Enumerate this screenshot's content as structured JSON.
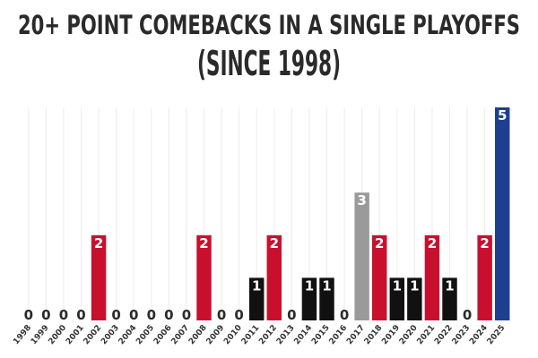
{
  "chart_data": {
    "type": "bar",
    "title": "20+ POINT COMEBACKS IN A SINGLE PLAYOFFS",
    "subtitle": "(SINCE 1998)",
    "categories": [
      "1998",
      "1999",
      "2000",
      "2001",
      "2002",
      "2003",
      "2004",
      "2005",
      "2006",
      "2007",
      "2008",
      "2009",
      "2010",
      "2011",
      "2012",
      "2013",
      "2014",
      "2015",
      "2016",
      "2017",
      "2018",
      "2019",
      "2020",
      "2021",
      "2022",
      "2023",
      "2024",
      "2025"
    ],
    "values": [
      0,
      0,
      0,
      0,
      2,
      0,
      0,
      0,
      0,
      0,
      2,
      0,
      0,
      1,
      2,
      0,
      1,
      1,
      0,
      3,
      2,
      1,
      1,
      2,
      1,
      0,
      2,
      5
    ],
    "colors": [
      "#c8102e",
      "#c8102e",
      "#c8102e",
      "#c8102e",
      "#c8102e",
      "#c8102e",
      "#c8102e",
      "#c8102e",
      "#c8102e",
      "#c8102e",
      "#c8102e",
      "#c8102e",
      "#c8102e",
      "#111111",
      "#c8102e",
      "#c8102e",
      "#111111",
      "#111111",
      "#c8102e",
      "#9a9a9a",
      "#c8102e",
      "#111111",
      "#111111",
      "#c8102e",
      "#111111",
      "#c8102e",
      "#c8102e",
      "#1d3f8f"
    ],
    "ylim": [
      0,
      5
    ],
    "grid": true
  }
}
